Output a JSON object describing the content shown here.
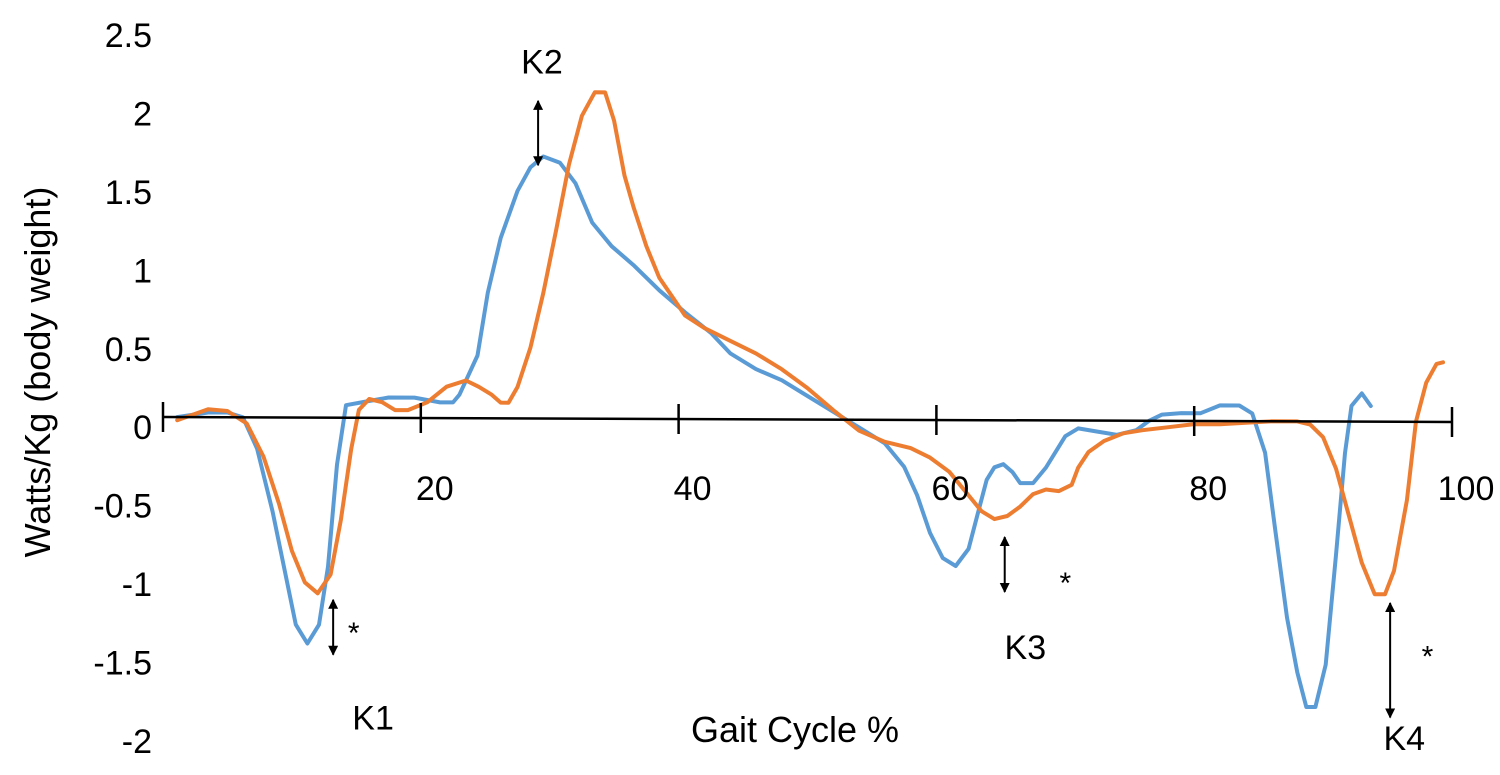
{
  "chart_data": {
    "type": "line",
    "title": "",
    "xlabel": "Gait Cycle %",
    "ylabel": "Watts/Kg (body weight)",
    "xlim": [
      0,
      100
    ],
    "ylim": [
      -2,
      2.5
    ],
    "x_ticks": [
      {
        "value": 20,
        "label": "20"
      },
      {
        "value": 40,
        "label": "40"
      },
      {
        "value": 60,
        "label": "60"
      },
      {
        "value": 80,
        "label": "80"
      },
      {
        "value": 100,
        "label": "100"
      }
    ],
    "y_ticks": [
      {
        "value": 2.5,
        "label": "2.5"
      },
      {
        "value": 2,
        "label": "2"
      },
      {
        "value": 1.5,
        "label": "1.5"
      },
      {
        "value": 1,
        "label": "1"
      },
      {
        "value": 0.5,
        "label": "0.5"
      },
      {
        "value": 0,
        "label": "0"
      },
      {
        "value": -0.5,
        "label": "-0.5"
      },
      {
        "value": -1,
        "label": "-1"
      },
      {
        "value": -1.5,
        "label": "-1.5"
      },
      {
        "value": -2,
        "label": "-2"
      }
    ],
    "grid": false,
    "legend": "none",
    "series": [
      {
        "color": "#5B9BD5",
        "points": [
          [
            1.1,
            0.0
          ],
          [
            3.5,
            0.03
          ],
          [
            5.0,
            0.03
          ],
          [
            6.2,
            0.0
          ],
          [
            7.3,
            -0.2
          ],
          [
            8.5,
            -0.6
          ],
          [
            9.5,
            -1.0
          ],
          [
            10.3,
            -1.32
          ],
          [
            11.2,
            -1.44
          ],
          [
            12.1,
            -1.32
          ],
          [
            12.8,
            -0.95
          ],
          [
            13.5,
            -0.3
          ],
          [
            14.2,
            0.08
          ],
          [
            15.5,
            0.1
          ],
          [
            17.5,
            0.13
          ],
          [
            19.5,
            0.13
          ],
          [
            21.5,
            0.1
          ],
          [
            22.5,
            0.1
          ],
          [
            23.0,
            0.15
          ],
          [
            24.4,
            0.4
          ],
          [
            25.2,
            0.8
          ],
          [
            26.2,
            1.15
          ],
          [
            27.5,
            1.45
          ],
          [
            28.5,
            1.6
          ],
          [
            29.5,
            1.67
          ],
          [
            30.8,
            1.63
          ],
          [
            32.0,
            1.5
          ],
          [
            33.3,
            1.25
          ],
          [
            34.8,
            1.1
          ],
          [
            36.5,
            0.98
          ],
          [
            38.5,
            0.82
          ],
          [
            40.5,
            0.68
          ],
          [
            42.5,
            0.55
          ],
          [
            44.0,
            0.42
          ],
          [
            46.0,
            0.32
          ],
          [
            48.0,
            0.25
          ],
          [
            50.0,
            0.15
          ],
          [
            52.0,
            0.05
          ],
          [
            54.0,
            -0.05
          ],
          [
            56.0,
            -0.15
          ],
          [
            57.5,
            -0.3
          ],
          [
            58.5,
            -0.48
          ],
          [
            59.5,
            -0.72
          ],
          [
            60.5,
            -0.88
          ],
          [
            61.5,
            -0.93
          ],
          [
            62.5,
            -0.82
          ],
          [
            63.2,
            -0.6
          ],
          [
            63.9,
            -0.38
          ],
          [
            64.5,
            -0.3
          ],
          [
            65.2,
            -0.28
          ],
          [
            65.9,
            -0.33
          ],
          [
            66.5,
            -0.4
          ],
          [
            67.5,
            -0.4
          ],
          [
            68.5,
            -0.3
          ],
          [
            70.0,
            -0.1
          ],
          [
            71.0,
            -0.05
          ],
          [
            72.5,
            -0.07
          ],
          [
            74.0,
            -0.09
          ],
          [
            75.5,
            -0.06
          ],
          [
            76.5,
            0.0
          ],
          [
            77.5,
            0.04
          ],
          [
            79.0,
            0.05
          ],
          [
            80.5,
            0.05
          ],
          [
            82.0,
            0.1
          ],
          [
            83.5,
            0.1
          ],
          [
            84.5,
            0.05
          ],
          [
            85.5,
            -0.2
          ],
          [
            86.3,
            -0.7
          ],
          [
            87.2,
            -1.25
          ],
          [
            88.0,
            -1.6
          ],
          [
            88.7,
            -1.82
          ],
          [
            89.4,
            -1.82
          ],
          [
            90.2,
            -1.55
          ],
          [
            91.0,
            -0.85
          ],
          [
            91.7,
            -0.2
          ],
          [
            92.2,
            0.1
          ],
          [
            93.0,
            0.18
          ],
          [
            93.7,
            0.1
          ]
        ]
      },
      {
        "color": "#ED7D31",
        "points": [
          [
            1.1,
            -0.02
          ],
          [
            3.5,
            0.05
          ],
          [
            5.0,
            0.04
          ],
          [
            6.5,
            -0.04
          ],
          [
            7.8,
            -0.25
          ],
          [
            9.0,
            -0.55
          ],
          [
            10.0,
            -0.85
          ],
          [
            11.0,
            -1.05
          ],
          [
            12.0,
            -1.12
          ],
          [
            13.0,
            -1.0
          ],
          [
            13.8,
            -0.65
          ],
          [
            14.6,
            -0.2
          ],
          [
            15.2,
            0.05
          ],
          [
            16.0,
            0.12
          ],
          [
            17.0,
            0.1
          ],
          [
            18.0,
            0.05
          ],
          [
            19.0,
            0.05
          ],
          [
            20.5,
            0.1
          ],
          [
            22.0,
            0.2
          ],
          [
            23.5,
            0.24
          ],
          [
            24.5,
            0.2
          ],
          [
            25.5,
            0.15
          ],
          [
            26.2,
            0.1
          ],
          [
            26.8,
            0.1
          ],
          [
            27.5,
            0.2
          ],
          [
            28.5,
            0.45
          ],
          [
            29.5,
            0.8
          ],
          [
            30.5,
            1.2
          ],
          [
            31.5,
            1.62
          ],
          [
            32.5,
            1.93
          ],
          [
            33.5,
            2.08
          ],
          [
            34.3,
            2.08
          ],
          [
            35.0,
            1.9
          ],
          [
            35.8,
            1.55
          ],
          [
            36.5,
            1.35
          ],
          [
            37.5,
            1.1
          ],
          [
            38.5,
            0.9
          ],
          [
            39.5,
            0.78
          ],
          [
            40.5,
            0.66
          ],
          [
            42.0,
            0.58
          ],
          [
            44.0,
            0.5
          ],
          [
            46.0,
            0.42
          ],
          [
            48.0,
            0.32
          ],
          [
            50.0,
            0.2
          ],
          [
            52.0,
            0.06
          ],
          [
            54.0,
            -0.07
          ],
          [
            56.0,
            -0.14
          ],
          [
            58.0,
            -0.18
          ],
          [
            59.5,
            -0.24
          ],
          [
            61.0,
            -0.33
          ],
          [
            62.5,
            -0.48
          ],
          [
            63.5,
            -0.58
          ],
          [
            64.5,
            -0.63
          ],
          [
            65.5,
            -0.61
          ],
          [
            66.5,
            -0.55
          ],
          [
            67.5,
            -0.47
          ],
          [
            68.5,
            -0.44
          ],
          [
            69.5,
            -0.45
          ],
          [
            70.5,
            -0.41
          ],
          [
            71.0,
            -0.3
          ],
          [
            71.8,
            -0.2
          ],
          [
            73.0,
            -0.13
          ],
          [
            74.5,
            -0.08
          ],
          [
            76.0,
            -0.06
          ],
          [
            78.0,
            -0.04
          ],
          [
            80.0,
            -0.02
          ],
          [
            82.0,
            -0.02
          ],
          [
            84.0,
            -0.01
          ],
          [
            86.0,
            0.0
          ],
          [
            88.0,
            0.0
          ],
          [
            89.0,
            -0.02
          ],
          [
            90.0,
            -0.1
          ],
          [
            91.0,
            -0.3
          ],
          [
            92.0,
            -0.6
          ],
          [
            93.0,
            -0.9
          ],
          [
            94.0,
            -1.1
          ],
          [
            94.8,
            -1.1
          ],
          [
            95.5,
            -0.95
          ],
          [
            96.5,
            -0.5
          ],
          [
            97.2,
            0.0
          ],
          [
            98.0,
            0.25
          ],
          [
            98.8,
            0.37
          ],
          [
            99.3,
            0.38
          ]
        ]
      }
    ],
    "annotations": [
      {
        "label": "K1",
        "star": "*",
        "label_at": [
          16.3,
          -1.85
        ],
        "star_at": [
          14.8,
          -1.3
        ],
        "arrow": {
          "x": 13.2,
          "y_from": -1.45,
          "y_to": -1.1
        }
      },
      {
        "label": "K2",
        "star": "",
        "label_at": [
          29.4,
          2.33
        ],
        "star_at": null,
        "arrow": {
          "x": 29.1,
          "y_from": 2.08,
          "y_to": 1.67
        }
      },
      {
        "label": "K3",
        "star": "*",
        "label_at": [
          66.9,
          -1.4
        ],
        "star_at": [
          70.0,
          -0.98
        ],
        "arrow": {
          "x": 65.3,
          "y_from": -0.7,
          "y_to": -1.05
        }
      },
      {
        "label": "K4",
        "star": "*",
        "label_at": [
          96.3,
          -1.98
        ],
        "star_at": [
          98.1,
          -1.45
        ],
        "arrow": {
          "x": 95.2,
          "y_from": -1.12,
          "y_to": -1.85
        }
      }
    ]
  }
}
